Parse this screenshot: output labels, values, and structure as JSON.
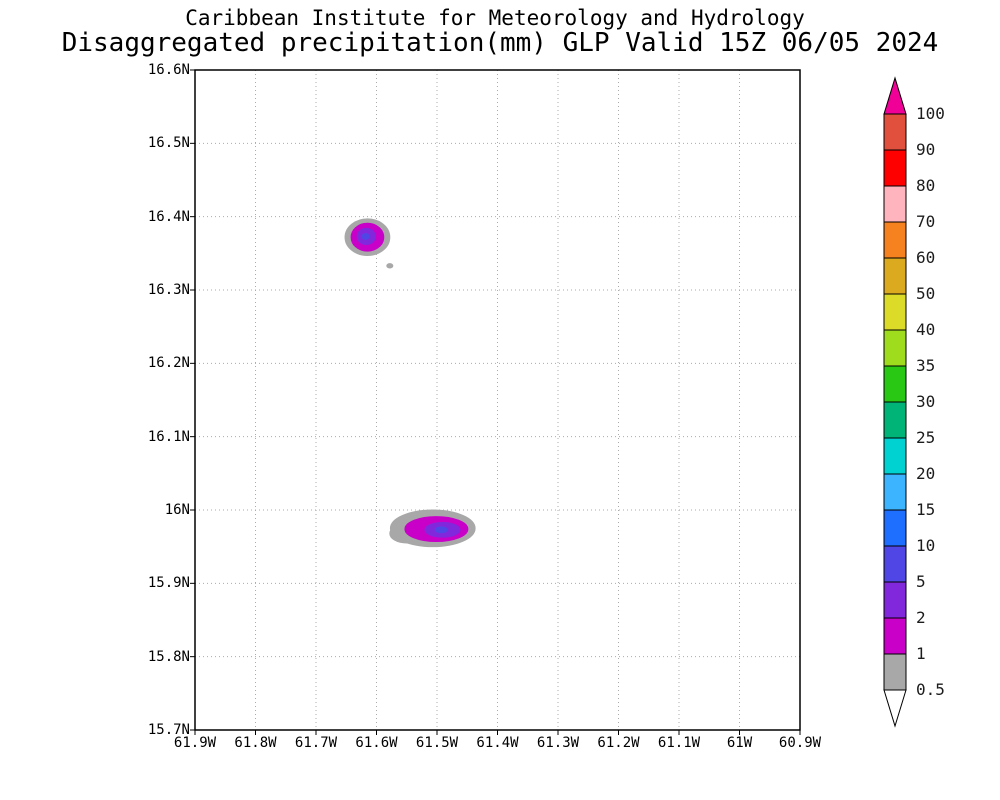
{
  "header": {
    "title_line1": "Caribbean Institute for Meteorology and Hydrology",
    "title_line2": "Disaggregated precipitation(mm) GLP Valid 15Z 06/05 2024"
  },
  "chart_data": {
    "type": "heatmap",
    "title": "Caribbean Institute for Meteorology and Hydrology",
    "subtitle": "Disaggregated precipitation(mm) GLP Valid 15Z 06/05 2024",
    "variable": "Disaggregated precipitation",
    "unit": "mm",
    "model": "GLP",
    "valid_time": "15Z 06/05 2024",
    "grid_style": "dotted",
    "x_axis": {
      "tick_labels": [
        "61.9W",
        "61.8W",
        "61.7W",
        "61.6W",
        "61.5W",
        "61.4W",
        "61.3W",
        "61.2W",
        "61.1W",
        "61W",
        "60.9W"
      ],
      "tick_values_deg_w": [
        61.9,
        61.8,
        61.7,
        61.6,
        61.5,
        61.4,
        61.3,
        61.2,
        61.1,
        61.0,
        60.9
      ],
      "left_deg_w": 61.9,
      "right_deg_w": 60.9
    },
    "y_axis": {
      "tick_labels": [
        "16.6N",
        "16.5N",
        "16.4N",
        "16.3N",
        "16.2N",
        "16.1N",
        "16N",
        "15.9N",
        "15.8N",
        "15.7N"
      ],
      "tick_values_deg_n": [
        16.6,
        16.5,
        16.4,
        16.3,
        16.2,
        16.1,
        16.0,
        15.9,
        15.8,
        15.7
      ],
      "top_deg_n": 16.6,
      "bottom_deg_n": 15.7
    },
    "legend": {
      "position": "right",
      "boundary_labels_bottom_to_top": [
        "0.5",
        "1",
        "2",
        "5",
        "10",
        "15",
        "20",
        "25",
        "30",
        "35",
        "40",
        "50",
        "60",
        "70",
        "80",
        "90",
        "100"
      ],
      "segment_colors_bottom_to_top": [
        "#a8a8a8",
        "#c800c8",
        "#8228dc",
        "#5046e6",
        "#1e6eff",
        "#3cb4ff",
        "#00d2d2",
        "#00b478",
        "#28c814",
        "#a0dc1e",
        "#dcdc28",
        "#dcaa1e",
        "#f5821e",
        "#ffb4be",
        "#ff0000",
        "#e0503c"
      ],
      "above_max_color": "#f00096",
      "below_min_color": "#ffffff"
    },
    "features": [
      {
        "name": "precip-cell-north",
        "approx_location": "61.62W 16.37N",
        "peak_range_mm": "2-5 (trace of 5+)",
        "contours": [
          {
            "level_mm": 0.5,
            "color": "#a8a8a8",
            "center_lon_w": 61.615,
            "center_lat_n": 16.372,
            "rx_deg": 0.037,
            "ry_deg": 0.025
          },
          {
            "level_mm": 1,
            "color": "#c800c8",
            "center_lon_w": 61.615,
            "center_lat_n": 16.372,
            "rx_deg": 0.027,
            "ry_deg": 0.019
          },
          {
            "level_mm": 2,
            "color": "#8228dc",
            "center_lon_w": 61.617,
            "center_lat_n": 16.373,
            "rx_deg": 0.015,
            "ry_deg": 0.011
          },
          {
            "level_mm": 5,
            "color": "#5046e6",
            "center_lon_w": 61.618,
            "center_lat_n": 16.373,
            "rx_deg": 0.006,
            "ry_deg": 0.004
          }
        ]
      },
      {
        "name": "precip-speck-north",
        "approx_location": "61.58W 16.33N",
        "peak_range_mm": "0.5-1",
        "contours": [
          {
            "level_mm": 0.5,
            "color": "#a8a8a8",
            "center_lon_w": 61.578,
            "center_lat_n": 16.333,
            "rx_deg": 0.005,
            "ry_deg": 0.003
          }
        ]
      },
      {
        "name": "precip-cell-south",
        "approx_location": "61.50W 15.97N",
        "peak_range_mm": "2-5 (trace of 5+)",
        "contours": [
          {
            "level_mm": 0.5,
            "color": "#a8a8a8",
            "center_lon_w": 61.55,
            "center_lat_n": 15.968,
            "rx_deg": 0.028,
            "ry_deg": 0.013
          },
          {
            "level_mm": 0.5,
            "color": "#a8a8a8",
            "center_lon_w": 61.507,
            "center_lat_n": 15.975,
            "rx_deg": 0.07,
            "ry_deg": 0.025
          },
          {
            "level_mm": 1,
            "color": "#c800c8",
            "center_lon_w": 61.501,
            "center_lat_n": 15.974,
            "rx_deg": 0.052,
            "ry_deg": 0.017
          },
          {
            "level_mm": 2,
            "color": "#8228dc",
            "center_lon_w": 61.491,
            "center_lat_n": 15.973,
            "rx_deg": 0.029,
            "ry_deg": 0.01
          },
          {
            "level_mm": 5,
            "color": "#5046e6",
            "center_lon_w": 61.493,
            "center_lat_n": 15.973,
            "rx_deg": 0.01,
            "ry_deg": 0.004
          }
        ]
      }
    ]
  }
}
